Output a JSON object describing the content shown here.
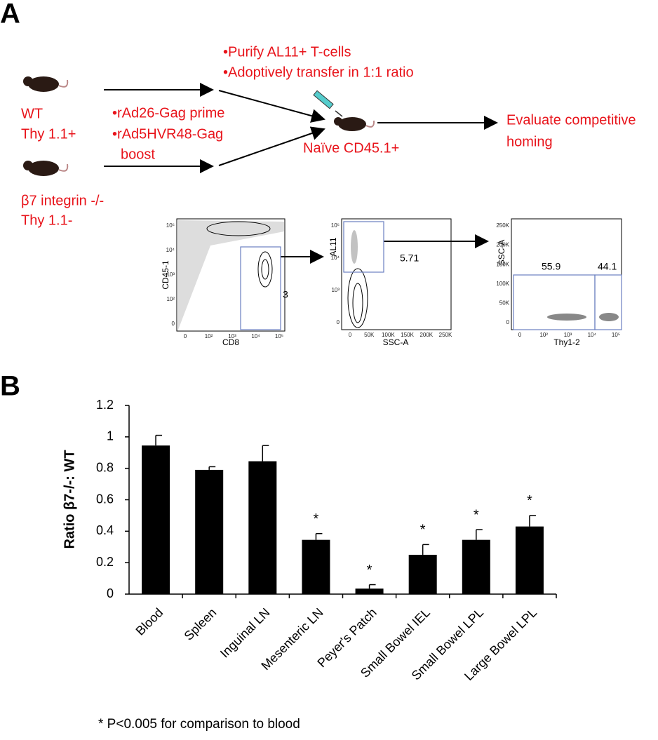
{
  "panel_a": {
    "label": "A",
    "mouse_wt": [
      "WT",
      "Thy 1.1+"
    ],
    "mouse_ko": [
      "β7 integrin -/-",
      "Thy 1.1-"
    ],
    "vaccination": [
      "•rAd26-Gag prime",
      "•rAd5HVR48-Gag",
      "boost"
    ],
    "transfer": [
      "•Purify AL11+ T-cells",
      "•Adoptively transfer in 1:1 ratio"
    ],
    "recipient": "Naïve CD45.1+",
    "readout": [
      "Evaluate competitive",
      "homing"
    ],
    "flow_plots": [
      {
        "x_label": "CD8",
        "y_label": "CD45-1",
        "x_ticks": [
          "0",
          "10²",
          "10³",
          "10⁴",
          "10⁵"
        ],
        "y_ticks": [
          "10⁵",
          "10⁴",
          "10³",
          "10²",
          "0"
        ],
        "gates": [
          "3"
        ]
      },
      {
        "x_label": "SSC-A",
        "y_label": "AL11",
        "x_ticks": [
          "0",
          "50K",
          "100K",
          "150K",
          "200K",
          "250K"
        ],
        "y_ticks": [
          "10⁵",
          "10⁴",
          "10³",
          "0"
        ],
        "gates": [
          "5.71"
        ]
      },
      {
        "x_label": "Thy1-2",
        "y_label": "SSC-A",
        "x_ticks": [
          "0",
          "10²",
          "10³",
          "10⁴",
          "10⁵"
        ],
        "y_ticks": [
          "250K",
          "200K",
          "150K",
          "100K",
          "50K",
          "0"
        ],
        "gates": [
          "55.9",
          "44.1"
        ]
      }
    ]
  },
  "panel_b_label": "B",
  "chart_data": {
    "type": "bar",
    "y_label": "Ratio β7-/-: WT",
    "categories": [
      "Blood",
      "Spleen",
      "Inguinal LN",
      "Mesenteric LN",
      "Peyer's Patch",
      "Small Bowel IEL",
      "Small Bowel LPL",
      "Large Bowel LPL"
    ],
    "values": [
      0.945,
      0.79,
      0.845,
      0.345,
      0.035,
      0.25,
      0.345,
      0.43
    ],
    "errors": [
      0.065,
      0.02,
      0.1,
      0.04,
      0.025,
      0.065,
      0.065,
      0.07
    ],
    "annotations": [
      null,
      null,
      null,
      "*",
      "*",
      "*",
      "*",
      "*"
    ],
    "color": "#000000",
    "ylim": [
      0,
      1.2
    ],
    "yticks": [
      0,
      0.2,
      0.4,
      0.6,
      0.8,
      1,
      1.2
    ]
  },
  "footnote": "* P<0.005 for comparison to blood"
}
